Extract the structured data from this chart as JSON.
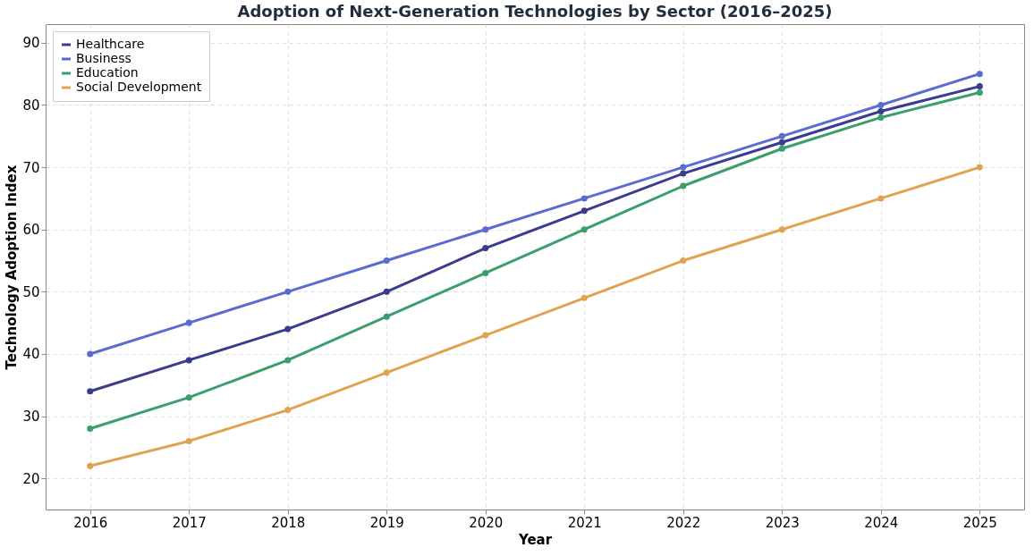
{
  "chart_data": {
    "type": "line",
    "title": "Adoption of Next-Generation Technologies by Sector (2016–2025)",
    "xlabel": "Year",
    "ylabel": "Technology Adoption Index",
    "x": [
      2016,
      2017,
      2018,
      2019,
      2020,
      2021,
      2022,
      2023,
      2024,
      2025
    ],
    "series": [
      {
        "name": "Healthcare",
        "color": "#3b3b8f",
        "values": [
          34,
          39,
          44,
          50,
          57,
          63,
          69,
          74,
          79,
          83
        ]
      },
      {
        "name": "Business",
        "color": "#5a6ccf",
        "values": [
          40,
          45,
          50,
          55,
          60,
          65,
          70,
          75,
          80,
          85
        ]
      },
      {
        "name": "Education",
        "color": "#3a9e6e",
        "values": [
          28,
          33,
          39,
          46,
          53,
          60,
          67,
          73,
          78,
          82
        ]
      },
      {
        "name": "Social Development",
        "color": "#e0a352",
        "values": [
          22,
          26,
          31,
          37,
          43,
          49,
          55,
          60,
          65,
          70
        ]
      }
    ],
    "xlim": [
      2015.55,
      2025.45
    ],
    "xticks": [
      2016,
      2017,
      2018,
      2019,
      2020,
      2021,
      2022,
      2023,
      2024,
      2025
    ],
    "ylim": [
      15,
      93
    ],
    "yticks": [
      20,
      30,
      40,
      50,
      60,
      70,
      80,
      90
    ],
    "grid": true,
    "legend": "top left",
    "marker": "circle",
    "line_style": "solid"
  }
}
